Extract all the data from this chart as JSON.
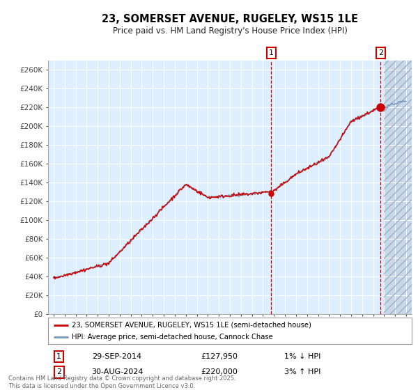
{
  "title": "23, SOMERSET AVENUE, RUGELEY, WS15 1LE",
  "subtitle": "Price paid vs. HM Land Registry's House Price Index (HPI)",
  "legend_line1": "23, SOMERSET AVENUE, RUGELEY, WS15 1LE (semi-detached house)",
  "legend_line2": "HPI: Average price, semi-detached house, Cannock Chase",
  "annotation1_label": "1",
  "annotation1_date": "29-SEP-2014",
  "annotation1_price": "£127,950",
  "annotation1_hpi": "1% ↓ HPI",
  "annotation2_label": "2",
  "annotation2_date": "30-AUG-2024",
  "annotation2_price": "£220,000",
  "annotation2_hpi": "3% ↑ HPI",
  "footnote": "Contains HM Land Registry data © Crown copyright and database right 2025.\nThis data is licensed under the Open Government Licence v3.0.",
  "red_color": "#cc0000",
  "blue_color": "#7799bb",
  "background_color": "#ffffff",
  "plot_bg_color": "#ddeeff",
  "ylim": [
    0,
    270000
  ],
  "yticks": [
    0,
    20000,
    40000,
    60000,
    80000,
    100000,
    120000,
    140000,
    160000,
    180000,
    200000,
    220000,
    240000,
    260000
  ],
  "point1_x": 2014.75,
  "point1_y": 127950,
  "point2_x": 2024.67,
  "point2_y": 220000,
  "future_start": 2025.0,
  "xmin": 1994.5,
  "xmax": 2027.5
}
